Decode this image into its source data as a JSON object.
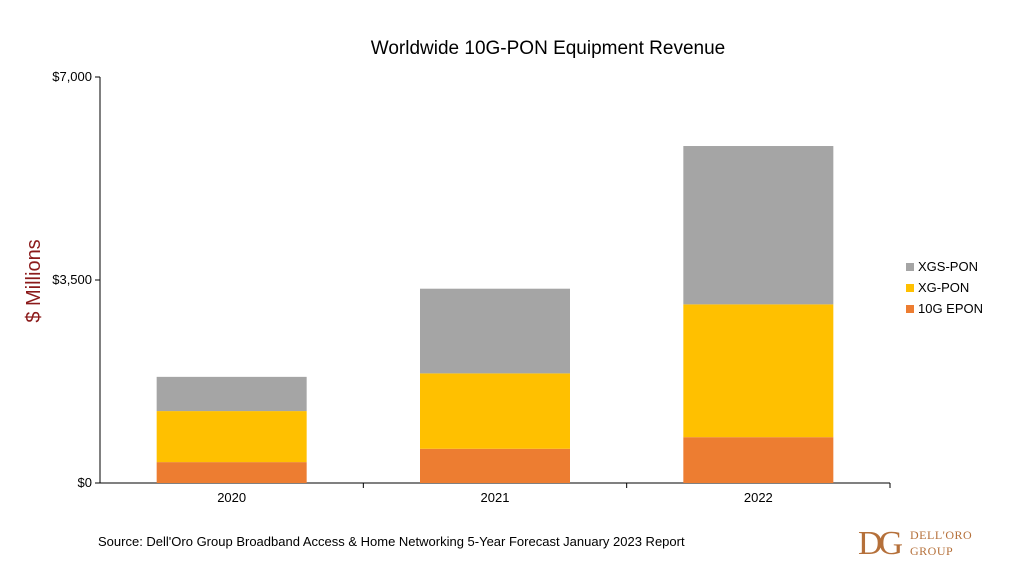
{
  "chart_data": {
    "type": "bar",
    "stacked": true,
    "title": "Worldwide 10G-PON Equipment Revenue",
    "ylabel": "$ Millions",
    "xlabel": "",
    "categories": [
      "2020",
      "2021",
      "2022"
    ],
    "ylim": [
      0,
      7000
    ],
    "yticks": [
      0,
      3500,
      7000
    ],
    "ytick_labels": [
      "$0",
      "$3,500",
      "$7,000"
    ],
    "series": [
      {
        "name": "10G EPON",
        "color": "#ED7D31",
        "values": [
          360,
          590,
          790
        ]
      },
      {
        "name": "XG-PON",
        "color": "#FFC000",
        "values": [
          880,
          1300,
          2290
        ]
      },
      {
        "name": "XGS-PON",
        "color": "#A5A5A5",
        "values": [
          590,
          1460,
          2730
        ]
      }
    ],
    "legend_order": [
      "XGS-PON",
      "XG-PON",
      "10G EPON"
    ],
    "legend_position": "right",
    "grid": false
  },
  "source": "Source: Dell'Oro Group Broadband Access & Home Networking 5-Year Forecast January 2023 Report",
  "logo": {
    "mark": "DG",
    "line1": "DELL'ORO",
    "line2": "GROUP"
  }
}
